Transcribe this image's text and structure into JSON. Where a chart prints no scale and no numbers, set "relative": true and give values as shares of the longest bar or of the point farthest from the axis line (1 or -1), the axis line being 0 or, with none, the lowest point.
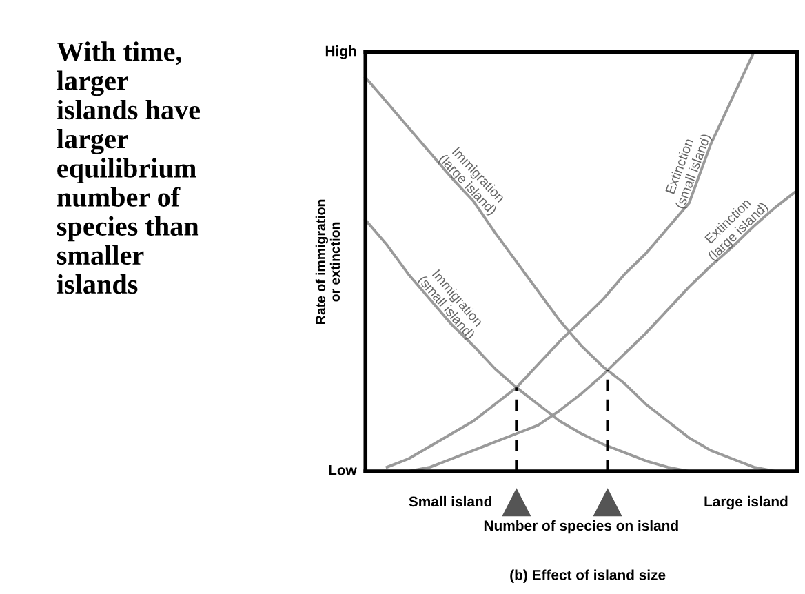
{
  "chart_data": {
    "type": "line",
    "relative": true,
    "xlabel": "Number of species on island",
    "ylabel": "Rate of immigration\nor extinction",
    "categories": [
      null,
      null,
      null,
      null,
      null,
      null,
      null,
      null,
      null,
      null,
      null,
      null,
      null,
      null,
      null,
      null,
      null,
      null,
      null,
      null,
      null
    ],
    "annotations": [
      "With time,\nlarger\nislands have\nlarger\nequilibrium\nnumber of\nspecies than\nsmaller\nislands",
      "High",
      "Low",
      "Small island",
      "Large island",
      "(b) Effect of island size"
    ],
    "series": [
      {
        "name": "Immigration\n(large island)",
        "color": "#9a9a9a",
        "values": [
          0.94,
          0.88,
          0.82,
          0.76,
          0.7,
          0.645,
          0.57,
          0.5,
          0.43,
          0.36,
          0.3,
          0.25,
          0.21,
          0.16,
          0.12,
          0.08,
          0.05,
          0.03,
          0.01,
          0,
          null
        ]
      },
      {
        "name": "Immigration\n(small island)",
        "color": "#9a9a9a",
        "values": [
          0.6,
          0.54,
          0.47,
          0.41,
          0.35,
          0.3,
          0.245,
          0.2,
          0.16,
          0.12,
          0.09,
          0.065,
          0.045,
          0.025,
          0.01,
          0,
          null,
          null,
          null,
          null,
          null
        ]
      },
      {
        "name": "Extinction\n(small island)",
        "color": "#9a9a9a",
        "values": [
          null,
          0.01,
          0.03,
          0.06,
          0.09,
          0.12,
          0.16,
          0.2,
          0.255,
          0.31,
          0.36,
          0.41,
          0.47,
          0.52,
          0.58,
          0.64,
          0.78,
          0.89,
          1.0,
          null,
          null
        ]
      },
      {
        "name": "Extinction\n(large island)",
        "color": "#9a9a9a",
        "values": [
          null,
          null,
          0,
          0.01,
          0.03,
          0.05,
          0.07,
          0.09,
          0.11,
          0.145,
          0.185,
          0.23,
          0.28,
          0.33,
          0.385,
          0.44,
          0.49,
          0.535,
          0.585,
          0.63,
          0.67
        ]
      }
    ]
  }
}
